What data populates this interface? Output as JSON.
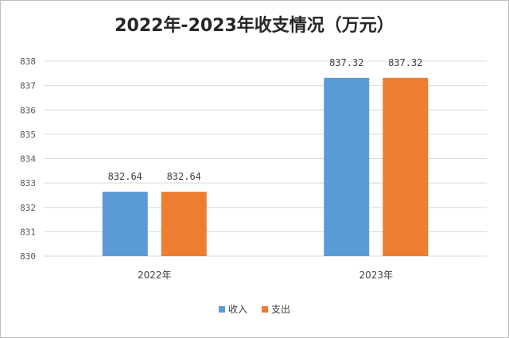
{
  "chart_data": {
    "type": "bar",
    "title": "2022年-2023年收支情况（万元）",
    "categories": [
      "2022年",
      "2023年"
    ],
    "series": [
      {
        "name": "收入",
        "values": [
          832.64,
          837.32
        ],
        "color": "#5b9bd5",
        "labels": [
          "832.64",
          "837.32"
        ]
      },
      {
        "name": "支出",
        "values": [
          832.64,
          837.32
        ],
        "color": "#ed7d31",
        "labels": [
          "832.64",
          "837.32"
        ]
      }
    ],
    "yticks": [
      "830",
      "831",
      "832",
      "833",
      "834",
      "835",
      "836",
      "837",
      "838"
    ],
    "ylim": [
      830,
      838
    ],
    "grid": true,
    "legend": "bottom"
  }
}
